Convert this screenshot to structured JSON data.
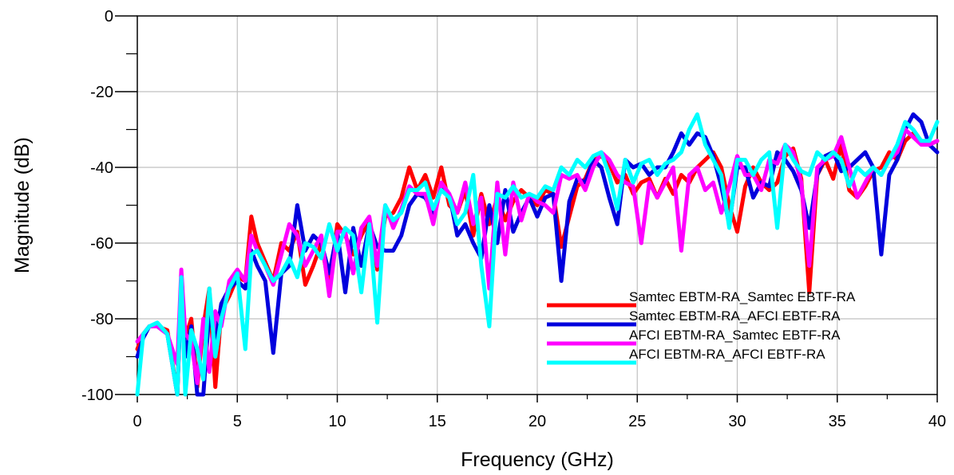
{
  "chart_data": {
    "type": "line",
    "title": "",
    "xlabel": "Frequency (GHz)",
    "ylabel": "Magnitude (dB)",
    "xlim": [
      0,
      40
    ],
    "ylim": [
      -100,
      0
    ],
    "x_ticks": [
      0,
      5,
      10,
      15,
      20,
      25,
      30,
      35,
      40
    ],
    "y_ticks": [
      0,
      -20,
      -40,
      -60,
      -80,
      -100
    ],
    "grid": true,
    "legend_position": "bottom-right-inside",
    "series": [
      {
        "name": "Samtec EBTM-RA_Samtec EBTF-RA",
        "color": "#ff0000",
        "x": [
          0,
          0.3,
          0.6,
          1,
          1.5,
          2,
          2.2,
          2.4,
          2.7,
          3,
          3.3,
          3.6,
          3.9,
          4.2,
          4.6,
          5,
          5.4,
          5.7,
          6,
          6.4,
          6.8,
          7.2,
          7.6,
          8,
          8.4,
          8.8,
          9.2,
          9.6,
          10,
          10.4,
          10.8,
          11.2,
          11.6,
          12,
          12.4,
          12.8,
          13.2,
          13.6,
          14,
          14.4,
          14.8,
          15.2,
          15.6,
          16,
          16.4,
          16.8,
          17.2,
          17.6,
          18,
          18.4,
          18.8,
          19.2,
          19.6,
          20,
          20.4,
          20.8,
          21.2,
          21.6,
          22,
          22.4,
          22.8,
          23.2,
          23.6,
          24,
          24.4,
          24.8,
          25.2,
          25.6,
          26,
          26.4,
          26.8,
          27.2,
          27.6,
          28,
          28.4,
          28.8,
          29.2,
          29.6,
          30,
          30.4,
          30.8,
          31.2,
          31.6,
          32,
          32.4,
          32.8,
          33.2,
          33.6,
          34,
          34.4,
          34.8,
          35.2,
          35.6,
          36,
          36.4,
          36.8,
          37.2,
          37.6,
          38,
          38.4,
          38.8,
          39.2,
          39.6,
          40
        ],
        "y": [
          -88,
          -84,
          -82,
          -82,
          -83,
          -100,
          -70,
          -85,
          -80,
          -98,
          -82,
          -72,
          -98,
          -78,
          -74,
          -69,
          -70,
          -53,
          -60,
          -65,
          -70,
          -60,
          -62,
          -57,
          -71,
          -66,
          -60,
          -72,
          -55,
          -58,
          -63,
          -58,
          -54,
          -67,
          -53,
          -52,
          -48,
          -40,
          -46,
          -42,
          -48,
          -40,
          -50,
          -52,
          -46,
          -58,
          -47,
          -55,
          -48,
          -54,
          -49,
          -46,
          -48,
          -50,
          -46,
          -47,
          -61,
          -53,
          -45,
          -43,
          -38,
          -37,
          -39,
          -44,
          -42,
          -47,
          -44,
          -43,
          -48,
          -43,
          -47,
          -42,
          -44,
          -40,
          -38,
          -36,
          -40,
          -50,
          -57,
          -45,
          -40,
          -44,
          -46,
          -44,
          -37,
          -35,
          -43,
          -73,
          -42,
          -38,
          -43,
          -34,
          -46,
          -48,
          -45,
          -41,
          -40,
          -36,
          -38,
          -33,
          -31,
          -33,
          -34,
          -33
        ]
      },
      {
        "name": "Samtec EBTM-RA_AFCI EBTF-RA",
        "color": "#0000dd",
        "x": [
          0,
          0.3,
          0.6,
          1,
          1.5,
          2,
          2.2,
          2.4,
          2.7,
          3,
          3.3,
          3.6,
          3.9,
          4.2,
          4.6,
          5,
          5.4,
          5.7,
          6,
          6.4,
          6.8,
          7.2,
          7.6,
          8,
          8.4,
          8.8,
          9.2,
          9.6,
          10,
          10.4,
          10.8,
          11.2,
          11.6,
          12,
          12.4,
          12.8,
          13.2,
          13.6,
          14,
          14.4,
          14.8,
          15.2,
          15.6,
          16,
          16.4,
          16.8,
          17.2,
          17.6,
          18,
          18.4,
          18.8,
          19.2,
          19.6,
          20,
          20.4,
          20.8,
          21.2,
          21.6,
          22,
          22.4,
          22.8,
          23.2,
          23.6,
          24,
          24.4,
          24.8,
          25.2,
          25.6,
          26,
          26.4,
          26.8,
          27.2,
          27.6,
          28,
          28.4,
          28.8,
          29.2,
          29.6,
          30,
          30.4,
          30.8,
          31.2,
          31.6,
          32,
          32.4,
          32.8,
          33.2,
          33.6,
          34,
          34.4,
          34.8,
          35.2,
          35.6,
          36,
          36.4,
          36.8,
          37.2,
          37.6,
          38,
          38.4,
          38.8,
          39.2,
          39.6,
          40
        ],
        "y": [
          -90,
          -85,
          -82,
          -82,
          -84,
          -100,
          -72,
          -90,
          -82,
          -100,
          -100,
          -78,
          -86,
          -76,
          -72,
          -70,
          -72,
          -62,
          -66,
          -70,
          -89,
          -68,
          -66,
          -50,
          -62,
          -58,
          -60,
          -68,
          -57,
          -73,
          -56,
          -66,
          -55,
          -61,
          -62,
          -62,
          -58,
          -50,
          -47,
          -48,
          -52,
          -45,
          -47,
          -58,
          -55,
          -60,
          -64,
          -50,
          -60,
          -46,
          -57,
          -52,
          -48,
          -53,
          -48,
          -47,
          -70,
          -49,
          -43,
          -44,
          -38,
          -40,
          -48,
          -55,
          -38,
          -40,
          -39,
          -42,
          -40,
          -40,
          -36,
          -31,
          -34,
          -31,
          -32,
          -37,
          -45,
          -55,
          -40,
          -40,
          -48,
          -44,
          -45,
          -36,
          -38,
          -41,
          -46,
          -56,
          -42,
          -37,
          -36,
          -41,
          -40,
          -38,
          -36,
          -40,
          -63,
          -42,
          -38,
          -30,
          -26,
          -28,
          -34,
          -36
        ]
      },
      {
        "name": "AFCI EBTM-RA_Samtec EBTF-RA",
        "color": "#ff00ff",
        "x": [
          0,
          0.3,
          0.6,
          1,
          1.5,
          2,
          2.2,
          2.4,
          2.7,
          3,
          3.3,
          3.6,
          3.9,
          4.2,
          4.6,
          5,
          5.4,
          5.7,
          6,
          6.4,
          6.8,
          7.2,
          7.6,
          8,
          8.4,
          8.8,
          9.2,
          9.6,
          10,
          10.4,
          10.8,
          11.2,
          11.6,
          12,
          12.4,
          12.8,
          13.2,
          13.6,
          14,
          14.4,
          14.8,
          15.2,
          15.6,
          16,
          16.4,
          16.8,
          17.2,
          17.6,
          18,
          18.4,
          18.8,
          19.2,
          19.6,
          20,
          20.4,
          20.8,
          21.2,
          21.6,
          22,
          22.4,
          22.8,
          23.2,
          23.6,
          24,
          24.4,
          24.8,
          25.2,
          25.6,
          26,
          26.4,
          26.8,
          27.2,
          27.6,
          28,
          28.4,
          28.8,
          29.2,
          29.6,
          30,
          30.4,
          30.8,
          31.2,
          31.6,
          32,
          32.4,
          32.8,
          33.2,
          33.6,
          34,
          34.4,
          34.8,
          35.2,
          35.6,
          36,
          36.4,
          36.8,
          37.2,
          37.6,
          38,
          38.4,
          38.8,
          39.2,
          39.6,
          40
        ],
        "y": [
          -86,
          -84,
          -82,
          -82,
          -84,
          -92,
          -67,
          -84,
          -86,
          -97,
          -80,
          -94,
          -78,
          -82,
          -70,
          -67,
          -70,
          -58,
          -62,
          -66,
          -71,
          -63,
          -55,
          -58,
          -66,
          -62,
          -58,
          -74,
          -57,
          -57,
          -68,
          -56,
          -53,
          -66,
          -50,
          -56,
          -51,
          -45,
          -47,
          -47,
          -55,
          -44,
          -47,
          -52,
          -44,
          -55,
          -48,
          -72,
          -44,
          -63,
          -44,
          -54,
          -47,
          -49,
          -50,
          -52,
          -42,
          -43,
          -42,
          -46,
          -40,
          -36,
          -38,
          -42,
          -44,
          -45,
          -60,
          -44,
          -48,
          -44,
          -40,
          -62,
          -42,
          -40,
          -46,
          -44,
          -52,
          -45,
          -37,
          -42,
          -42,
          -46,
          -38,
          -39,
          -34,
          -36,
          -44,
          -66,
          -40,
          -38,
          -37,
          -32,
          -40,
          -48,
          -44,
          -40,
          -42,
          -38,
          -36,
          -30,
          -32,
          -34,
          -34,
          -33
        ]
      },
      {
        "name": "AFCI EBTM-RA_AFCI EBTF-RA",
        "color": "#00ffff",
        "x": [
          0,
          0.3,
          0.6,
          1,
          1.5,
          2,
          2.2,
          2.4,
          2.7,
          3,
          3.3,
          3.6,
          3.9,
          4.2,
          4.6,
          5,
          5.4,
          5.7,
          6,
          6.4,
          6.8,
          7.2,
          7.6,
          8,
          8.4,
          8.8,
          9.2,
          9.6,
          10,
          10.4,
          10.8,
          11.2,
          11.6,
          12,
          12.4,
          12.8,
          13.2,
          13.6,
          14,
          14.4,
          14.8,
          15.2,
          15.6,
          16,
          16.4,
          16.8,
          17.2,
          17.6,
          18,
          18.4,
          18.8,
          19.2,
          19.6,
          20,
          20.4,
          20.8,
          21.2,
          21.6,
          22,
          22.4,
          22.8,
          23.2,
          23.6,
          24,
          24.4,
          24.8,
          25.2,
          25.6,
          26,
          26.4,
          26.8,
          27.2,
          27.6,
          28,
          28.4,
          28.8,
          29.2,
          29.6,
          30,
          30.4,
          30.8,
          31.2,
          31.6,
          32,
          32.4,
          32.8,
          33.2,
          33.6,
          34,
          34.4,
          34.8,
          35.2,
          35.6,
          36,
          36.4,
          36.8,
          37.2,
          37.6,
          38,
          38.4,
          38.8,
          39.2,
          39.6,
          40
        ],
        "y": [
          -100,
          -84,
          -82,
          -81,
          -84,
          -100,
          -69,
          -100,
          -83,
          -88,
          -96,
          -72,
          -90,
          -80,
          -72,
          -68,
          -88,
          -63,
          -62,
          -66,
          -70,
          -68,
          -64,
          -69,
          -60,
          -61,
          -64,
          -55,
          -62,
          -56,
          -58,
          -73,
          -55,
          -81,
          -50,
          -54,
          -52,
          -46,
          -46,
          -44,
          -51,
          -46,
          -48,
          -55,
          -52,
          -42,
          -66,
          -82,
          -47,
          -48,
          -45,
          -48,
          -47,
          -48,
          -45,
          -46,
          -40,
          -42,
          -38,
          -40,
          -37,
          -36,
          -42,
          -51,
          -38,
          -44,
          -39,
          -38,
          -42,
          -39,
          -38,
          -36,
          -30,
          -26,
          -34,
          -38,
          -42,
          -56,
          -38,
          -38,
          -42,
          -38,
          -36,
          -56,
          -34,
          -38,
          -41,
          -42,
          -36,
          -38,
          -36,
          -38,
          -45,
          -40,
          -42,
          -40,
          -42,
          -38,
          -34,
          -28,
          -30,
          -33,
          -33,
          -28
        ]
      }
    ]
  }
}
